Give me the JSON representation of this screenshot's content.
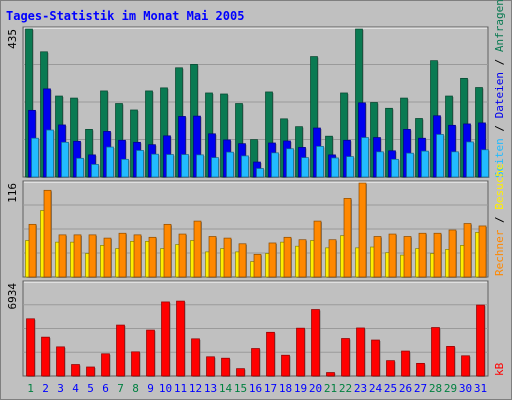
{
  "title": "Tages-Statistik im Monat Mai 2005",
  "colors": {
    "anfragen": "#0a7a52",
    "dateien": "#0000ee",
    "seiten": "#22bbff",
    "besuche": "#ffee00",
    "rechner": "#ff8800",
    "kb": "#ff0000",
    "weekend": "#008040",
    "weekday": "#0000ff"
  },
  "chart_data": [
    {
      "type": "bar",
      "ylabel_max": "435",
      "ylim": [
        0,
        435
      ],
      "legend": {
        "anfragen": "Anfragen",
        "dateien": "Dateien",
        "seiten": "Seiten"
      },
      "categories": [
        "1",
        "2",
        "3",
        "4",
        "5",
        "6",
        "7",
        "8",
        "9",
        "10",
        "11",
        "12",
        "13",
        "14",
        "15",
        "16",
        "17",
        "18",
        "19",
        "20",
        "21",
        "22",
        "23",
        "24",
        "25",
        "26",
        "27",
        "28",
        "29",
        "30",
        "31"
      ],
      "series": [
        {
          "name": "Anfragen",
          "key": "anfragen",
          "values": [
            435,
            368,
            238,
            232,
            140,
            253,
            216,
            197,
            253,
            262,
            321,
            331,
            247,
            244,
            216,
            110,
            250,
            171,
            148,
            354,
            120,
            247,
            435,
            219,
            202,
            232,
            172,
            342,
            238,
            290,
            263
          ]
        },
        {
          "name": "Dateien",
          "key": "dateien",
          "values": [
            196,
            259,
            153,
            105,
            65,
            134,
            108,
            102,
            95,
            121,
            178,
            179,
            127,
            109,
            98,
            44,
            100,
            106,
            87,
            144,
            65,
            108,
            218,
            116,
            77,
            140,
            114,
            180,
            152,
            156,
            159
          ]
        },
        {
          "name": "Seiten",
          "key": "seiten",
          "values": [
            114,
            138,
            102,
            55,
            37,
            88,
            52,
            78,
            67,
            66,
            66,
            65,
            57,
            73,
            62,
            25,
            71,
            83,
            57,
            90,
            56,
            60,
            116,
            74,
            52,
            70,
            76,
            125,
            74,
            103,
            80
          ]
        }
      ]
    },
    {
      "type": "bar",
      "ylabel_max": "116",
      "ylim": [
        0,
        116
      ],
      "legend": {
        "rechner": "Rechner",
        "besuche": "Besuche"
      },
      "categories": [
        "1",
        "2",
        "3",
        "4",
        "5",
        "6",
        "7",
        "8",
        "9",
        "10",
        "11",
        "12",
        "13",
        "14",
        "15",
        "16",
        "17",
        "18",
        "19",
        "20",
        "21",
        "22",
        "23",
        "24",
        "25",
        "26",
        "27",
        "28",
        "29",
        "30",
        "31"
      ],
      "series": [
        {
          "name": "Rechner",
          "key": "rechner",
          "values": [
            65,
            107,
            52,
            52,
            52,
            48,
            54,
            52,
            49,
            65,
            53,
            69,
            50,
            48,
            41,
            28,
            42,
            49,
            46,
            69,
            46,
            97,
            116,
            50,
            53,
            50,
            54,
            54,
            58,
            66,
            63
          ]
        },
        {
          "name": "Besuche",
          "key": "besuche",
          "values": [
            45,
            82,
            43,
            43,
            29,
            39,
            35,
            44,
            44,
            35,
            40,
            45,
            31,
            35,
            31,
            19,
            29,
            43,
            38,
            45,
            36,
            51,
            36,
            37,
            30,
            27,
            35,
            29,
            34,
            39,
            55
          ]
        }
      ]
    },
    {
      "type": "bar",
      "ylabel_max": "6934",
      "ylim": [
        0,
        6934
      ],
      "legend": {
        "kb": "kB"
      },
      "categories": [
        "1",
        "2",
        "3",
        "4",
        "5",
        "6",
        "7",
        "8",
        "9",
        "10",
        "11",
        "12",
        "13",
        "14",
        "15",
        "16",
        "17",
        "18",
        "19",
        "20",
        "21",
        "22",
        "23",
        "24",
        "25",
        "26",
        "27",
        "28",
        "29",
        "30",
        "31"
      ],
      "series": [
        {
          "name": "kB",
          "key": "kb",
          "values": [
            4266,
            2898,
            2174,
            857,
            672,
            1657,
            3798,
            1803,
            3425,
            5523,
            5585,
            2772,
            1433,
            1328,
            550,
            2050,
            3260,
            1550,
            3567,
            4958,
            259,
            2796,
            3582,
            2683,
            1147,
            1860,
            944,
            3615,
            2207,
            1508,
            5289
          ]
        }
      ]
    }
  ]
}
